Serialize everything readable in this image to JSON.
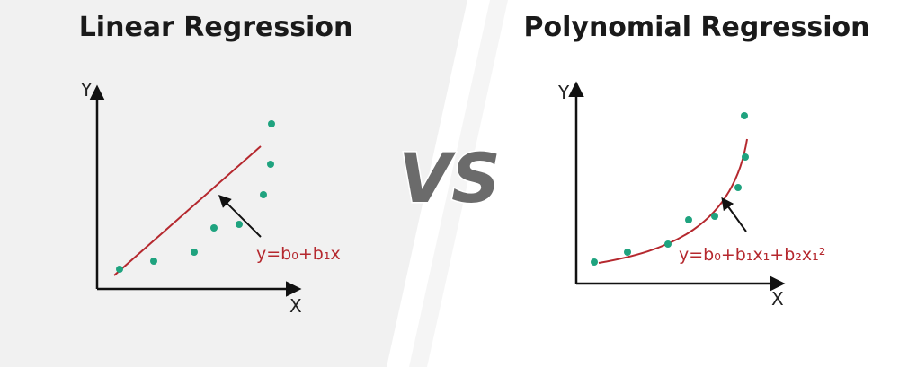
{
  "left": {
    "title": "Linear Regression",
    "y_label": "Y",
    "x_label": "X",
    "equation": "y=b₀+b₁x"
  },
  "right": {
    "title": "Polynomial Regression",
    "y_label": "Y",
    "x_label": "X",
    "equation": "y=b₀+b₁x₁+b₂x₁²"
  },
  "vs": "VS"
}
